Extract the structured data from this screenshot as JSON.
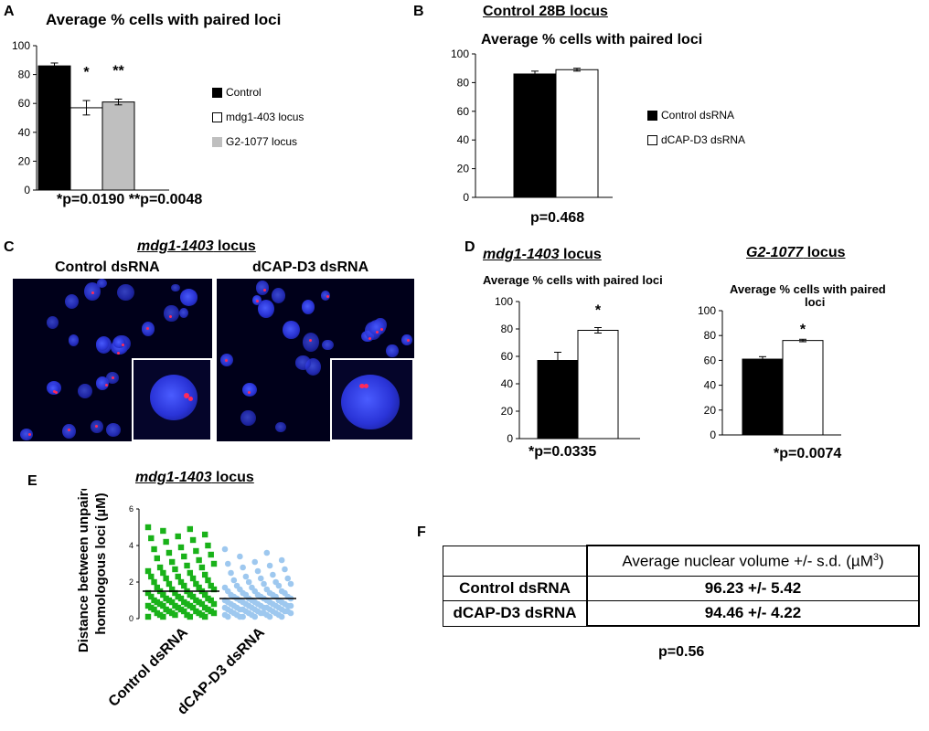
{
  "panels": {
    "a": "A",
    "b": "B",
    "c": "C",
    "d": "D",
    "e": "E",
    "f": "F"
  },
  "panel_a": {
    "title": "Average % cells with paired loci",
    "stat": "*p=0.0190   **p=0.0048",
    "legend": [
      "Control",
      "mdg1-403 locus",
      "G2-1077 locus"
    ]
  },
  "panel_b": {
    "heading": "Control 28B locus",
    "title": "Average % cells with paired loci",
    "stat": "p=0.468",
    "legend": [
      "Control dsRNA",
      "dCAP-D3 dsRNA"
    ]
  },
  "panel_c": {
    "heading_italic": "mdg1-1403",
    "heading_rest": " locus",
    "left_label": "Control dsRNA",
    "right_label": "dCAP-D3 dsRNA"
  },
  "panel_d": {
    "left_heading_italic": "mdg1-1403",
    "left_heading_rest": " locus",
    "left_title": "Average % cells with paired loci",
    "left_stat": "*p=0.0335",
    "right_heading_italic": "G2-1077",
    "right_heading_rest": " locus",
    "right_title_line1": "Average % cells with paired",
    "right_title_line2": "loci",
    "right_stat": "*p=0.0074"
  },
  "panel_e": {
    "heading_italic": "mdg1-1403",
    "heading_rest": " locus",
    "ylabel_line1": "Distance between unpaired",
    "ylabel_line2": "homologous loci (µM)",
    "categories": [
      "Control dsRNA",
      "dCAP-D3 dsRNA"
    ]
  },
  "panel_f": {
    "header": "Average nuclear volume +/- s.d. (µM",
    "header_sup": "3",
    "header_close": ")",
    "rows": [
      {
        "label": "Control dsRNA",
        "value": "96.23 +/-  5.42"
      },
      {
        "label": "dCAP-D3 dsRNA",
        "value": "94.46 +/-  4.22"
      }
    ],
    "stat": "p=0.56"
  },
  "colors": {
    "control": "#000000",
    "white_bar": "#ffffff",
    "grey_bar": "#bfbfbf",
    "control_dots": "#19b219",
    "dcap_dots": "#9ec8ef",
    "nucleus": "#2a34d8",
    "foci": "#ff2a5a"
  },
  "chart_data": [
    {
      "id": "A",
      "type": "bar",
      "title": "Average % cells with paired loci",
      "categories": [
        "Control",
        "mdg1-403 locus",
        "G2-1077 locus"
      ],
      "values": [
        86,
        57,
        61
      ],
      "errors": [
        2,
        5,
        2
      ],
      "annotations": [
        "",
        "*",
        "**"
      ],
      "ylim": [
        0,
        100
      ],
      "yticks": [
        0,
        20,
        40,
        60,
        80,
        100
      ],
      "colors": [
        "#000000",
        "#ffffff",
        "#bfbfbf"
      ],
      "legend": "right"
    },
    {
      "id": "B",
      "type": "bar",
      "title": "Average % cells with paired loci",
      "categories": [
        "Control dsRNA",
        "dCAP-D3 dsRNA"
      ],
      "values": [
        86,
        89
      ],
      "errors": [
        2,
        1
      ],
      "ylim": [
        0,
        100
      ],
      "yticks": [
        0,
        20,
        40,
        60,
        80,
        100
      ],
      "colors": [
        "#000000",
        "#ffffff"
      ],
      "legend": "right"
    },
    {
      "id": "D-left",
      "type": "bar",
      "title": "Average % cells with paired loci",
      "categories": [
        "Control dsRNA",
        "dCAP-D3 dsRNA"
      ],
      "values": [
        57,
        79
      ],
      "errors": [
        6,
        2
      ],
      "annotations": [
        "",
        "*"
      ],
      "ylim": [
        0,
        100
      ],
      "yticks": [
        0,
        20,
        40,
        60,
        80,
        100
      ],
      "colors": [
        "#000000",
        "#ffffff"
      ]
    },
    {
      "id": "D-right",
      "type": "bar",
      "title": "Average % cells with paired loci",
      "categories": [
        "Control dsRNA",
        "dCAP-D3 dsRNA"
      ],
      "values": [
        61,
        76
      ],
      "errors": [
        2,
        1
      ],
      "annotations": [
        "",
        "*"
      ],
      "ylim": [
        0,
        100
      ],
      "yticks": [
        0,
        20,
        40,
        60,
        80,
        100
      ],
      "colors": [
        "#000000",
        "#ffffff"
      ]
    },
    {
      "id": "E",
      "type": "scatter",
      "categories": [
        "Control dsRNA",
        "dCAP-D3 dsRNA"
      ],
      "ylim": [
        0,
        6
      ],
      "yticks": [
        0,
        2,
        4,
        6
      ],
      "means": [
        1.5,
        1.1
      ],
      "series": [
        {
          "values": [
            5.0,
            4.9,
            4.8,
            4.6,
            4.5,
            4.4,
            4.3,
            4.2,
            4.0,
            3.9,
            3.8,
            3.7,
            3.6,
            3.5,
            3.4,
            3.3,
            3.2,
            3.1,
            3.0,
            2.9,
            2.8,
            2.8,
            2.7,
            2.6,
            2.5,
            2.5,
            2.4,
            2.3,
            2.3,
            2.2,
            2.2,
            2.1,
            2.0,
            2.0,
            1.9,
            1.9,
            1.8,
            1.8,
            1.7,
            1.7,
            1.6,
            1.6,
            1.5,
            1.5,
            1.5,
            1.4,
            1.4,
            1.3,
            1.3,
            1.3,
            1.2,
            1.2,
            1.2,
            1.1,
            1.1,
            1.1,
            1.0,
            1.0,
            1.0,
            1.0,
            0.9,
            0.9,
            0.9,
            0.9,
            0.8,
            0.8,
            0.8,
            0.8,
            0.7,
            0.7,
            0.7,
            0.7,
            0.6,
            0.6,
            0.6,
            0.6,
            0.5,
            0.5,
            0.5,
            0.5,
            0.4,
            0.4,
            0.4,
            0.4,
            0.3,
            0.3,
            0.3,
            0.3,
            0.2,
            0.2,
            0.2,
            0.2,
            0.1,
            0.1,
            0.1,
            0.1
          ]
        },
        {
          "values": [
            3.8,
            3.6,
            3.4,
            3.2,
            3.1,
            3.0,
            2.9,
            2.8,
            2.7,
            2.6,
            2.5,
            2.4,
            2.3,
            2.2,
            2.2,
            2.1,
            2.0,
            2.0,
            1.9,
            1.9,
            1.8,
            1.8,
            1.7,
            1.7,
            1.6,
            1.6,
            1.5,
            1.5,
            1.5,
            1.4,
            1.4,
            1.4,
            1.3,
            1.3,
            1.3,
            1.3,
            1.2,
            1.2,
            1.2,
            1.2,
            1.1,
            1.1,
            1.1,
            1.1,
            1.0,
            1.0,
            1.0,
            1.0,
            1.0,
            0.9,
            0.9,
            0.9,
            0.9,
            0.9,
            0.8,
            0.8,
            0.8,
            0.8,
            0.8,
            0.7,
            0.7,
            0.7,
            0.7,
            0.7,
            0.7,
            0.6,
            0.6,
            0.6,
            0.6,
            0.6,
            0.6,
            0.5,
            0.5,
            0.5,
            0.5,
            0.5,
            0.5,
            0.4,
            0.4,
            0.4,
            0.4,
            0.4,
            0.4,
            0.3,
            0.3,
            0.3,
            0.3,
            0.3,
            0.3,
            0.2,
            0.2,
            0.2,
            0.2,
            0.2,
            0.1,
            0.1,
            0.1,
            0.1,
            0.1,
            0.1
          ]
        }
      ]
    }
  ]
}
